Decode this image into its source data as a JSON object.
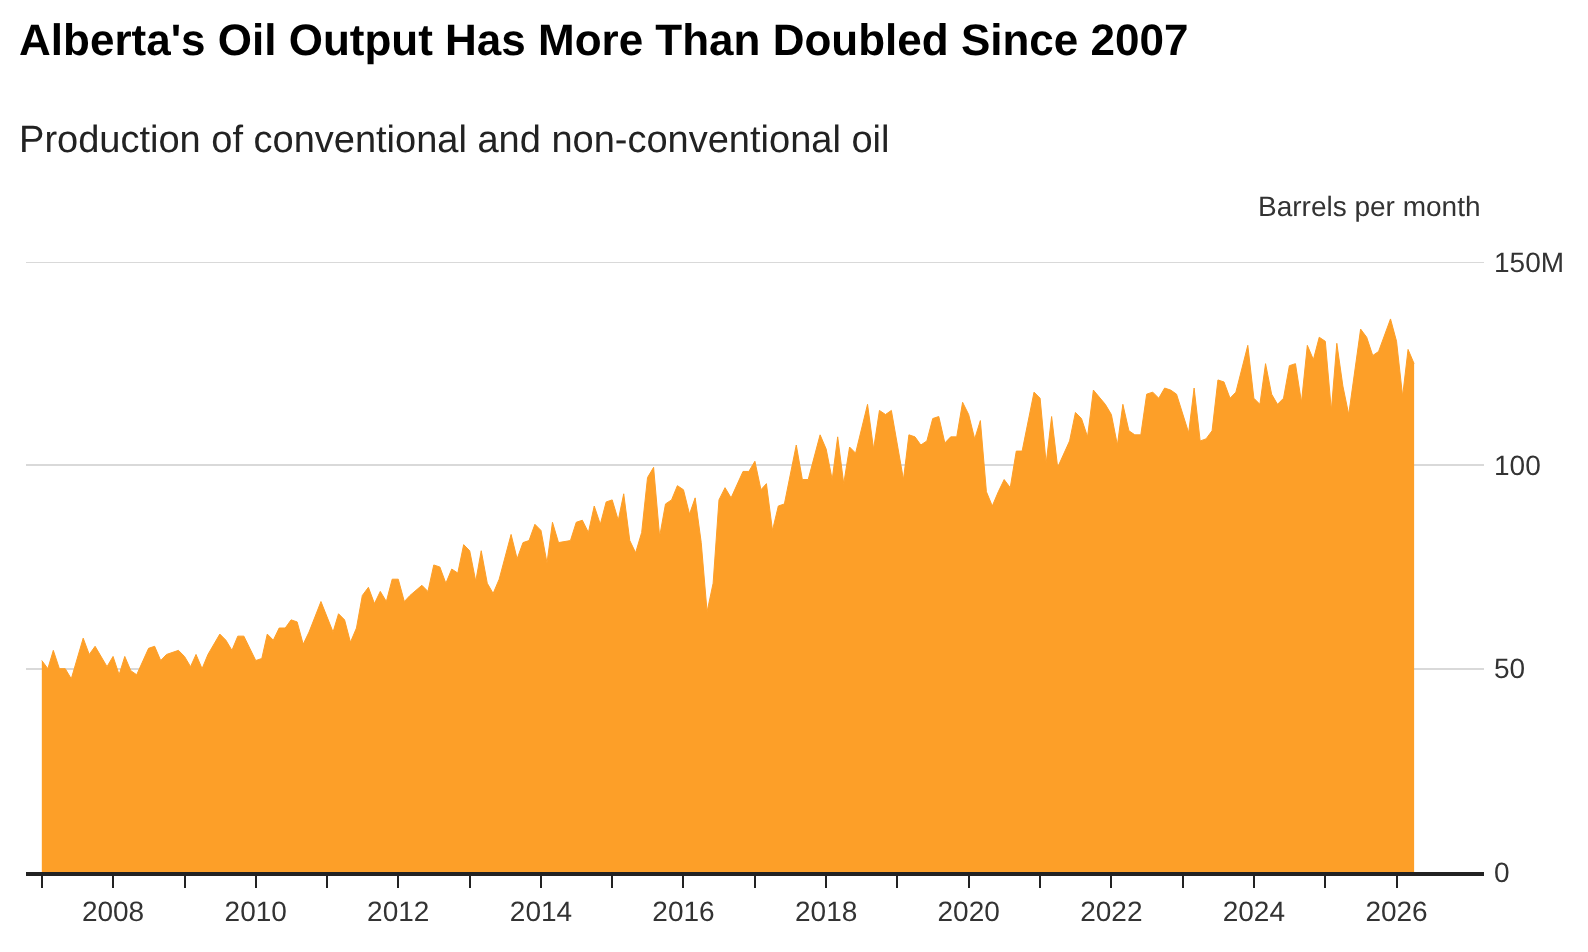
{
  "chart_data": {
    "type": "area",
    "title": "Alberta's Oil Output Has More Than Doubled Since 2007",
    "subtitle": "Production of conventional and non-conventional oil",
    "ylabel": "Barrels per month",
    "x": [
      "2007-01",
      "2007-02",
      "2007-03",
      "2007-04",
      "2007-05",
      "2007-06",
      "2007-08",
      "2007-09",
      "2007-10",
      "2007-12",
      "2008-01",
      "2008-02",
      "2008-03",
      "2008-04",
      "2008-05",
      "2008-07",
      "2008-08",
      "2008-09",
      "2008-10",
      "2008-12",
      "2009-01",
      "2009-02",
      "2009-03",
      "2009-04",
      "2009-05",
      "2009-07",
      "2009-08",
      "2009-09",
      "2009-10",
      "2009-11",
      "2010-01",
      "2010-02",
      "2010-03",
      "2010-04",
      "2010-05",
      "2010-06",
      "2010-07",
      "2010-08",
      "2010-09",
      "2010-10",
      "2010-12",
      "2011-02",
      "2011-03",
      "2011-04",
      "2011-05",
      "2011-06",
      "2011-07",
      "2011-08",
      "2011-09",
      "2011-10",
      "2011-11",
      "2011-12",
      "2012-01",
      "2012-02",
      "2012-03",
      "2012-05",
      "2012-06",
      "2012-07",
      "2012-08",
      "2012-09",
      "2012-10",
      "2012-11",
      "2012-12",
      "2013-01",
      "2013-02",
      "2013-03",
      "2013-04",
      "2013-05",
      "2013-06",
      "2013-08",
      "2013-09",
      "2013-10",
      "2013-11",
      "2013-12",
      "2014-01",
      "2014-02",
      "2014-03",
      "2014-04",
      "2014-06",
      "2014-07",
      "2014-08",
      "2014-09",
      "2014-10",
      "2014-11",
      "2014-12",
      "2015-01",
      "2015-02",
      "2015-03",
      "2015-04",
      "2015-05",
      "2015-06",
      "2015-07",
      "2015-08",
      "2015-09",
      "2015-10",
      "2015-11",
      "2015-12",
      "2016-01",
      "2016-02",
      "2016-03",
      "2016-04",
      "2016-05",
      "2016-06",
      "2016-07",
      "2016-08",
      "2016-09",
      "2016-11",
      "2016-12",
      "2017-01",
      "2017-02",
      "2017-03",
      "2017-04",
      "2017-05",
      "2017-06",
      "2017-08",
      "2017-09",
      "2017-10",
      "2017-12",
      "2018-01",
      "2018-02",
      "2018-03",
      "2018-04",
      "2018-05",
      "2018-06",
      "2018-08",
      "2018-09",
      "2018-10",
      "2018-11",
      "2018-12",
      "2019-02",
      "2019-03",
      "2019-04",
      "2019-05",
      "2019-06",
      "2019-07",
      "2019-08",
      "2019-09",
      "2019-10",
      "2019-11",
      "2019-12",
      "2020-01",
      "2020-02",
      "2020-03",
      "2020-04",
      "2020-05",
      "2020-06",
      "2020-07",
      "2020-08",
      "2020-09",
      "2020-10",
      "2020-12",
      "2021-01",
      "2021-02",
      "2021-03",
      "2021-04",
      "2021-06",
      "2021-07",
      "2021-08",
      "2021-09",
      "2021-10",
      "2021-12",
      "2022-01",
      "2022-02",
      "2022-03",
      "2022-04",
      "2022-05",
      "2022-06",
      "2022-07",
      "2022-08",
      "2022-09",
      "2022-10",
      "2022-11",
      "2022-12",
      "2023-02",
      "2023-03",
      "2023-04",
      "2023-05",
      "2023-06",
      "2023-07",
      "2023-08",
      "2023-09",
      "2023-10",
      "2023-12",
      "2024-01",
      "2024-02",
      "2024-03",
      "2024-04",
      "2024-05",
      "2024-06",
      "2024-07",
      "2024-08",
      "2024-09",
      "2024-10",
      "2024-11",
      "2024-12",
      "2025-01",
      "2025-02",
      "2025-03",
      "2025-04",
      "2025-05",
      "2025-07",
      "2025-08",
      "2025-09",
      "2025-10",
      "2025-12",
      "2026-01",
      "2026-02",
      "2026-03",
      "2026-04"
    ],
    "series": [
      {
        "color": "#fd9f28",
        "values": [
          52,
          50,
          54.5,
          50,
          50,
          47.5,
          57.5,
          53.5,
          55.5,
          50.5,
          53,
          48.5,
          53,
          49.5,
          48.5,
          55,
          55.5,
          52,
          53.5,
          54.5,
          53,
          50.5,
          53.5,
          50,
          53.5,
          58.5,
          57,
          54.5,
          58,
          58,
          52,
          52.5,
          58.5,
          57,
          60,
          60,
          62,
          61.5,
          56,
          59,
          66.5,
          59,
          63.5,
          62,
          56.5,
          60,
          68,
          70,
          66,
          69,
          66.5,
          72,
          72,
          66.5,
          68,
          70.5,
          69,
          75.5,
          75,
          71,
          74.5,
          73.5,
          80.5,
          79,
          71.5,
          79,
          71,
          68.5,
          72,
          83,
          77,
          81,
          81.5,
          85.5,
          84,
          76,
          86,
          81,
          81.5,
          86,
          86.5,
          83.5,
          90,
          85.5,
          91,
          91.5,
          86.5,
          93,
          81.5,
          78.5,
          83.5,
          97,
          99.5,
          82.5,
          90.5,
          91.5,
          95,
          94,
          88,
          92,
          81,
          64,
          71,
          91.5,
          94.5,
          92,
          98.5,
          98.5,
          101,
          94,
          95.5,
          84,
          90,
          90.5,
          105,
          96.5,
          96.5,
          107.5,
          104,
          96.5,
          107,
          95.5,
          104.5,
          103,
          115,
          104,
          113.5,
          112.5,
          113.5,
          96.5,
          107.5,
          107,
          105,
          106,
          111.5,
          112,
          105.5,
          107,
          107,
          115.5,
          112.5,
          106.5,
          111,
          93.5,
          90,
          93.5,
          96.5,
          94.5,
          103.5,
          103.5,
          118,
          116.5,
          100.5,
          112,
          99.5,
          106,
          113,
          111.5,
          107,
          118.5,
          115,
          112.5,
          105,
          115,
          108.5,
          107.5,
          107.5,
          117.5,
          118,
          116.5,
          119,
          118.5,
          117.5,
          108,
          119,
          106,
          106.5,
          108.5,
          121,
          120.5,
          116.5,
          118,
          129.5,
          116.5,
          115,
          125,
          117.5,
          115,
          116.5,
          124.5,
          125,
          115.5,
          129.5,
          126,
          131.5,
          130.5,
          113.5,
          130,
          119.5,
          112.5,
          133.5,
          131.5,
          127,
          128,
          136,
          130.5,
          117,
          128.5,
          125
        ]
      }
    ],
    "xlim": [
      "2006-10-12",
      "2027-03-25"
    ],
    "xticks": [
      {
        "value": "2007",
        "label": null
      },
      "2008",
      {
        "value": "2009",
        "label": null
      },
      "2010",
      {
        "value": "2011",
        "label": null
      },
      "2012",
      {
        "value": "2013",
        "label": null
      },
      "2014",
      {
        "value": "2015",
        "label": null
      },
      "2016",
      {
        "value": "2017",
        "label": null
      },
      "2018",
      {
        "value": "2019",
        "label": null
      },
      "2020",
      {
        "value": "2021",
        "label": null
      },
      "2022",
      {
        "value": "2023",
        "label": null
      },
      "2024",
      {
        "value": "2025",
        "label": null
      },
      "2026"
    ],
    "ylim": [
      0,
      150
    ],
    "yticks": [
      0,
      50,
      100,
      {
        "value": 150,
        "label": "150M"
      }
    ],
    "grid": "y"
  }
}
